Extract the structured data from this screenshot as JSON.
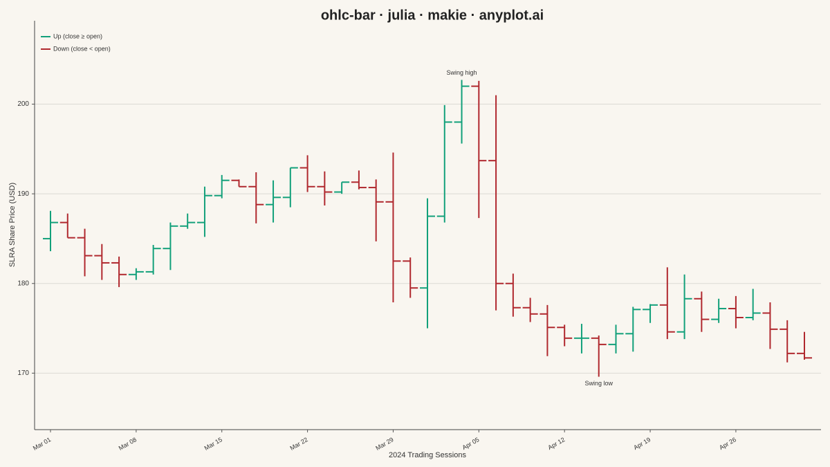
{
  "chart_data": {
    "type": "ohlc",
    "title": "ohlc-bar · julia · makie · anyplot.ai",
    "xlabel": "2024 Trading Sessions",
    "ylabel": "SLRA Share Price (USD)",
    "categories": [
      "Mar 01",
      null,
      null,
      null,
      null,
      "Mar 08",
      null,
      null,
      null,
      null,
      "Mar 15",
      null,
      null,
      null,
      null,
      "Mar 22",
      null,
      null,
      null,
      null,
      "Mar 29",
      null,
      null,
      null,
      null,
      "Apr 05",
      null,
      null,
      null,
      null,
      "Apr 12",
      null,
      null,
      null,
      null,
      "Apr 19",
      null,
      null,
      null,
      null,
      "Apr 26",
      null,
      null,
      null,
      null
    ],
    "open": [
      185.0,
      186.8,
      185.1,
      183.1,
      182.3,
      181.0,
      181.3,
      183.9,
      186.4,
      186.8,
      189.8,
      191.5,
      190.8,
      188.8,
      189.6,
      192.9,
      190.8,
      190.2,
      191.3,
      190.7,
      189.1,
      182.5,
      179.5,
      187.5,
      198.0,
      202.0,
      193.7,
      180.0,
      177.3,
      176.6,
      175.1,
      173.9,
      173.9,
      173.2,
      174.4,
      177.1,
      177.6,
      174.6,
      178.3,
      176.0,
      177.2,
      176.2,
      176.7,
      174.9,
      172.2
    ],
    "high": [
      188.1,
      187.8,
      186.1,
      184.4,
      183.0,
      181.7,
      184.3,
      186.8,
      187.8,
      190.8,
      192.1,
      191.6,
      192.4,
      191.5,
      192.9,
      194.3,
      192.5,
      191.3,
      192.6,
      191.6,
      194.6,
      182.9,
      189.5,
      199.9,
      202.7,
      202.6,
      201.0,
      181.1,
      178.4,
      177.6,
      175.4,
      175.5,
      174.2,
      175.4,
      177.4,
      177.7,
      181.8,
      181.0,
      179.1,
      178.3,
      178.6,
      179.4,
      177.9,
      175.9,
      174.6
    ],
    "low": [
      183.6,
      185.1,
      180.8,
      180.4,
      179.6,
      180.4,
      181.0,
      181.5,
      186.1,
      185.2,
      189.5,
      190.8,
      186.7,
      186.8,
      188.5,
      190.2,
      188.7,
      190.0,
      190.5,
      184.7,
      177.9,
      178.4,
      175.0,
      186.8,
      195.6,
      187.3,
      177.0,
      176.3,
      175.7,
      171.9,
      173.0,
      172.2,
      169.6,
      172.2,
      172.4,
      175.6,
      173.8,
      173.8,
      174.6,
      175.6,
      175.0,
      175.9,
      172.7,
      171.2,
      171.5
    ],
    "close": [
      186.8,
      185.1,
      183.1,
      182.3,
      181.0,
      181.3,
      183.9,
      186.4,
      186.8,
      189.8,
      191.5,
      190.8,
      188.8,
      189.6,
      192.9,
      190.8,
      190.2,
      191.3,
      190.7,
      189.1,
      182.5,
      179.5,
      187.5,
      198.0,
      202.0,
      193.7,
      180.0,
      177.3,
      176.6,
      175.1,
      173.9,
      173.9,
      173.2,
      174.4,
      177.1,
      177.6,
      174.6,
      178.3,
      176.0,
      177.2,
      176.2,
      176.7,
      174.9,
      172.2,
      171.7
    ],
    "up": {
      "name": "Up (close ≥ open)",
      "color": "#12a07a"
    },
    "down": {
      "name": "Down (close < open)",
      "color": "#b0282e"
    },
    "annotations": {
      "high": "Swing high",
      "low": "Swing low"
    },
    "ylim": [
      163.7,
      209.3
    ],
    "yticks": [
      170,
      180,
      190,
      200
    ],
    "grid": true,
    "legend": "upper-left"
  }
}
